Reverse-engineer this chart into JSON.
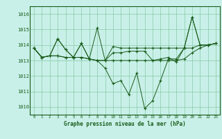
{
  "title": "Graphe pression niveau de la mer (hPa)",
  "background_color": "#c8f0e8",
  "grid_color": "#88c8a8",
  "line_color": "#1a5c1a",
  "xlim": [
    -0.5,
    23.5
  ],
  "ylim": [
    1009.5,
    1016.5
  ],
  "yticks": [
    1010,
    1011,
    1012,
    1013,
    1014,
    1015,
    1016
  ],
  "xticks": [
    0,
    1,
    2,
    3,
    4,
    5,
    6,
    7,
    8,
    9,
    10,
    11,
    12,
    13,
    14,
    15,
    16,
    17,
    18,
    19,
    20,
    21,
    22,
    23
  ],
  "series": [
    [
      1013.8,
      1013.2,
      1013.3,
      1014.4,
      1013.7,
      1013.2,
      1014.1,
      1013.1,
      1015.1,
      1013.0,
      1013.9,
      1013.8,
      1013.8,
      1013.8,
      1013.8,
      1013.8,
      1013.8,
      1013.8,
      1013.8,
      1013.8,
      1015.8,
      1014.0,
      1014.0,
      1014.1
    ],
    [
      1013.8,
      1013.2,
      1013.3,
      1014.4,
      1013.7,
      1013.2,
      1014.1,
      1013.1,
      1013.0,
      1012.5,
      1011.5,
      1011.7,
      1010.8,
      1012.2,
      1009.9,
      1010.4,
      1011.7,
      1013.1,
      1013.1,
      1013.8,
      1015.8,
      1014.0,
      1014.0,
      1014.1
    ],
    [
      1013.8,
      1013.2,
      1013.3,
      1013.3,
      1013.2,
      1013.2,
      1013.2,
      1013.1,
      1013.0,
      1013.0,
      1013.0,
      1013.0,
      1013.0,
      1013.0,
      1013.0,
      1013.0,
      1013.0,
      1013.0,
      1013.0,
      1013.1,
      1013.5,
      1013.8,
      1014.0,
      1014.1
    ],
    [
      1013.8,
      1013.2,
      1013.3,
      1013.3,
      1013.2,
      1013.2,
      1013.2,
      1013.1,
      1013.0,
      1013.0,
      1013.5,
      1013.5,
      1013.6,
      1013.6,
      1013.6,
      1013.0,
      1013.1,
      1013.2,
      1012.9,
      1013.8,
      1013.8,
      1014.0,
      1014.0,
      1014.1
    ]
  ]
}
